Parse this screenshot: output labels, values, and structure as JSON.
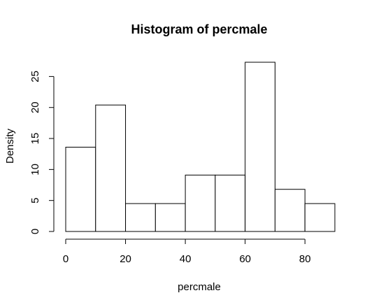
{
  "chart_data": {
    "type": "bar",
    "title": "Histogram of percmale",
    "xlabel": "percmale",
    "ylabel": "Density",
    "bins": [
      {
        "from": 0,
        "to": 10,
        "value": 13.6
      },
      {
        "from": 10,
        "to": 20,
        "value": 20.4
      },
      {
        "from": 20,
        "to": 30,
        "value": 4.5
      },
      {
        "from": 30,
        "to": 40,
        "value": 4.5
      },
      {
        "from": 40,
        "to": 50,
        "value": 9.1
      },
      {
        "from": 50,
        "to": 60,
        "value": 9.1
      },
      {
        "from": 60,
        "to": 70,
        "value": 27.3
      },
      {
        "from": 70,
        "to": 80,
        "value": 6.8
      },
      {
        "from": 80,
        "to": 90,
        "value": 4.5
      }
    ],
    "xlim": [
      0,
      90
    ],
    "ylim": [
      0,
      27.3
    ],
    "x_ticks": [
      "0",
      "20",
      "40",
      "60",
      "80"
    ],
    "x_tick_values": [
      0,
      20,
      40,
      60,
      80
    ],
    "y_ticks": [
      "0",
      "5",
      "10",
      "15",
      "20",
      "25"
    ],
    "y_tick_values": [
      0,
      5,
      10,
      15,
      20,
      25
    ],
    "bar_fill": "#ffffff",
    "bar_stroke": "#000000",
    "grid": false,
    "legend": "none"
  }
}
